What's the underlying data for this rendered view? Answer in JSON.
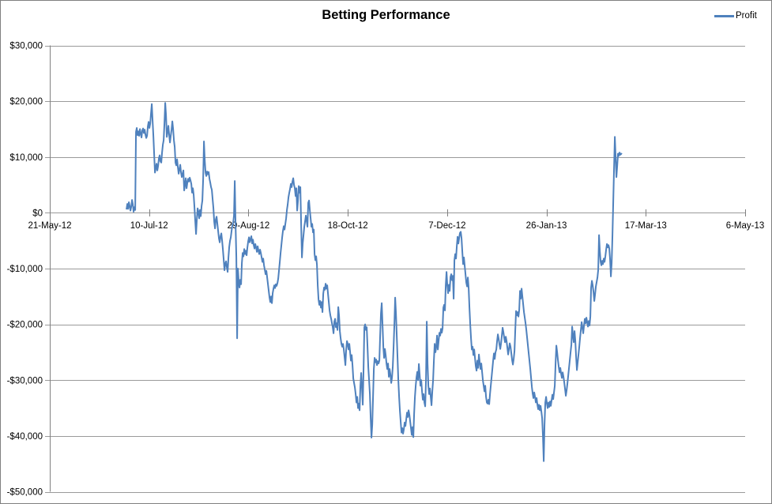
{
  "chart": {
    "title": "Betting Performance",
    "legend": {
      "series_label": "Profit"
    }
  },
  "colors": {
    "series_line": "#4F81BD",
    "gridline": "#9a9a9a",
    "axis": "#808080",
    "text": "#000000",
    "border": "#808080",
    "background": "#FFFFFF"
  },
  "chart_data": {
    "type": "line",
    "title": "Betting Performance",
    "legend_position": "top-right",
    "legend_entries": [
      "Profit"
    ],
    "grid": true,
    "x_axis": {
      "kind": "date",
      "tick_labels": [
        "21-May-12",
        "10-Jul-12",
        "29-Aug-12",
        "18-Oct-12",
        "7-Dec-12",
        "26-Jan-13",
        "17-Mar-13",
        "6-May-13"
      ],
      "tick_interval_days": 50,
      "range_days": [
        0,
        350
      ]
    },
    "y_axis": {
      "tick_labels": [
        "$30,000",
        "$20,000",
        "$10,000",
        "$0",
        "-$10,000",
        "-$20,000",
        "-$30,000",
        "-$40,000",
        "-$50,000"
      ],
      "tick_values": [
        30000,
        20000,
        10000,
        0,
        -10000,
        -20000,
        -30000,
        -40000,
        -50000
      ],
      "range": [
        -50000,
        30000
      ],
      "unit": "USD"
    },
    "series": [
      {
        "name": "Profit",
        "day_start": 38.6,
        "day_end": 288.0,
        "values_usd": [
          600,
          1600,
          700,
          1900,
          1200,
          400,
          1100,
          2300,
          1500,
          200,
          1000,
          500,
          14500,
          15200,
          13900,
          14600,
          13800,
          15000,
          14200,
          13500,
          14800,
          15100,
          14300,
          14900,
          14000,
          13400,
          13800,
          15500,
          16300,
          15200,
          16000,
          17800,
          19500,
          16500,
          13800,
          10500,
          7200,
          8000,
          8800,
          7600,
          8400,
          9800,
          10300,
          9200,
          9000,
          10800,
          12200,
          13000,
          16000,
          19700,
          17500,
          13600,
          14500,
          15600,
          13900,
          12600,
          13800,
          14900,
          16400,
          15000,
          13000,
          11800,
          9000,
          8500,
          9600,
          8200,
          7000,
          7800,
          8600,
          7200,
          6400,
          7000,
          7600,
          4000,
          5000,
          6200,
          4400,
          5400,
          6100,
          5600,
          6300,
          5800,
          5200,
          3600,
          4400,
          3200,
          1000,
          -1500,
          -3800,
          -1200,
          800,
          200,
          -1000,
          500,
          -600,
          1200,
          2200,
          6000,
          12800,
          9500,
          7200,
          6600,
          7400,
          6900,
          7300,
          6100,
          5400,
          4600,
          4100,
          2400,
          800,
          -1600,
          -2800,
          -1200,
          -700,
          -2000,
          -3300,
          -4600,
          -5300,
          -4200,
          -3700,
          -5000,
          -6600,
          -8400,
          -10300,
          -9100,
          -8700,
          -9800,
          -10600,
          -8000,
          -6100,
          -5000,
          -4400,
          -3200,
          -2200,
          -1800,
          -500,
          5700,
          -2000,
          -8000,
          -22500,
          -10000,
          -12300,
          -13400,
          -12000,
          -12800,
          -9000,
          -7200,
          -7800,
          -6500,
          -7400,
          -6800,
          -7600,
          -6200,
          -5100,
          -4400,
          -5300,
          -4700,
          -4200,
          -5500,
          -4800,
          -5800,
          -6400,
          -5600,
          -6200,
          -7000,
          -6000,
          -6800,
          -7400,
          -6600,
          -7200,
          -8000,
          -8800,
          -8200,
          -9400,
          -10200,
          -11000,
          -10400,
          -11600,
          -12800,
          -14000,
          -15200,
          -16000,
          -15000,
          -16200,
          -14400,
          -13600,
          -13000,
          -13500,
          -12800,
          -13100,
          -12600,
          -11800,
          -10300,
          -8800,
          -7200,
          -5800,
          -4400,
          -3200,
          -2400,
          -3000,
          -2000,
          -1000,
          500,
          1500,
          2800,
          3600,
          4300,
          5200,
          4600,
          5600,
          6200,
          5000,
          4400,
          3000,
          4400,
          400,
          2200,
          4800,
          3600,
          4600,
          -2000,
          -8000,
          -5500,
          -4000,
          -2500,
          -1500,
          -500,
          -1500,
          -2500,
          1800,
          2200,
          500,
          -1000,
          -2500,
          -2000,
          -3500,
          -3000,
          -7400,
          -8500,
          -7800,
          -9300,
          -13000,
          -15500,
          -16500,
          -15800,
          -17000,
          -16000,
          -17800,
          -14500,
          -13400,
          -13800,
          -12700,
          -13600,
          -13000,
          -14500,
          -16000,
          -17500,
          -18400,
          -19000,
          -19800,
          -20500,
          -21600,
          -19500,
          -19000,
          -20500,
          -19800,
          -21000,
          -16900,
          -18500,
          -21200,
          -22500,
          -23500,
          -24000,
          -23500,
          -24500,
          -25900,
          -27300,
          -24500,
          -23000,
          -23500,
          -24500,
          -23500,
          -25000,
          -26500,
          -25500,
          -27300,
          -29700,
          -30500,
          -31300,
          -32500,
          -34000,
          -33000,
          -35000,
          -34200,
          -35400,
          -31000,
          -28700,
          -31500,
          -34400,
          -28000,
          -20500,
          -20000,
          -21000,
          -20500,
          -24000,
          -27700,
          -30000,
          -32500,
          -36800,
          -40300,
          -38000,
          -33000,
          -28000,
          -26000,
          -26800,
          -26300,
          -27300,
          -26600,
          -27000,
          -26500,
          -22000,
          -18000,
          -16200,
          -20000,
          -24000,
          -26000,
          -24400,
          -25500,
          -27000,
          -28000,
          -27000,
          -29400,
          -28000,
          -29000,
          -30500,
          -29500,
          -27500,
          -24000,
          -20000,
          -15200,
          -18000,
          -22000,
          -26000,
          -30000,
          -33000,
          -35500,
          -37500,
          -39400,
          -38600,
          -39600,
          -38800,
          -37600,
          -38200,
          -37000,
          -35800,
          -36600,
          -35400,
          -36200,
          -37400,
          -38600,
          -39800,
          -38400,
          -40200,
          -36000,
          -33000,
          -31000,
          -29500,
          -28500,
          -30000,
          -27100,
          -29000,
          -31000,
          -30000,
          -32000,
          -33500,
          -32500,
          -34000,
          -34700,
          -30000,
          -19500,
          -27000,
          -31000,
          -32500,
          -31500,
          -33000,
          -34500,
          -32000,
          -30000,
          -26500,
          -23500,
          -25000,
          -24000,
          -22000,
          -24500,
          -23000,
          -21500,
          -22000,
          -20800,
          -21500,
          -20700,
          -17000,
          -16500,
          -17500,
          -13000,
          -10600,
          -13000,
          -14400,
          -12900,
          -14000,
          -11500,
          -11000,
          -12100,
          -11300,
          -15400,
          -8500,
          -7400,
          -8200,
          -6000,
          -4300,
          -5500,
          -4500,
          -3600,
          -3400,
          -4600,
          -7000,
          -9200,
          -8000,
          -9500,
          -11000,
          -12500,
          -13200,
          -11600,
          -13500,
          -17000,
          -20000,
          -22500,
          -24500,
          -24000,
          -25500,
          -24500,
          -26000,
          -27500,
          -28300,
          -26500,
          -27800,
          -25400,
          -26800,
          -28000,
          -27000,
          -28500,
          -30000,
          -31000,
          -32000,
          -31000,
          -33000,
          -34000,
          -34200,
          -33500,
          -34300,
          -32500,
          -31000,
          -29500,
          -28000,
          -26500,
          -25200,
          -26200,
          -25000,
          -24500,
          -23000,
          -21800,
          -22600,
          -23600,
          -24400,
          -23400,
          -22000,
          -20600,
          -21400,
          -22400,
          -23200,
          -22200,
          -23000,
          -24200,
          -25400,
          -24400,
          -23400,
          -24000,
          -25200,
          -26400,
          -27200,
          -26200,
          -24800,
          -21000,
          -17600,
          -18400,
          -17800,
          -18600,
          -17400,
          -14000,
          -15400,
          -13600,
          -15000,
          -16400,
          -17800,
          -18800,
          -19800,
          -21000,
          -22400,
          -23800,
          -25200,
          -26600,
          -28000,
          -29600,
          -31200,
          -32400,
          -33200,
          -32200,
          -33000,
          -34000,
          -33200,
          -34400,
          -35200,
          -34400,
          -35400,
          -34600,
          -35600,
          -36800,
          -40000,
          -44500,
          -38000,
          -34000,
          -33000,
          -34200,
          -35000,
          -34000,
          -34800,
          -33800,
          -34600,
          -33600,
          -32600,
          -33400,
          -32200,
          -31000,
          -27000,
          -23800,
          -25000,
          -26400,
          -27600,
          -28600,
          -27800,
          -28800,
          -29600,
          -28600,
          -29400,
          -30400,
          -31600,
          -32800,
          -31800,
          -30600,
          -29200,
          -27800,
          -26400,
          -25000,
          -23600,
          -20400,
          -22000,
          -23200,
          -21200,
          -23000,
          -25800,
          -28200,
          -26800,
          -25400,
          -24000,
          -22400,
          -21000,
          -19600,
          -20600,
          -21600,
          -20200,
          -19000,
          -19800,
          -18800,
          -19600,
          -20400,
          -19400,
          -20200,
          -18600,
          -13400,
          -12200,
          -13000,
          -14200,
          -15800,
          -14600,
          -13200,
          -12400,
          -11600,
          -10200,
          -4000,
          -6800,
          -8800,
          -9400,
          -8600,
          -9200,
          -8200,
          -8800,
          -7800,
          -6600,
          -5600,
          -6200,
          -5800,
          -6400,
          -8400,
          -11400,
          -9000,
          -4000,
          2000,
          8000,
          13600,
          10000,
          6400,
          8400,
          10600,
          10200,
          10800,
          10400,
          10600,
          10500
        ]
      }
    ]
  }
}
